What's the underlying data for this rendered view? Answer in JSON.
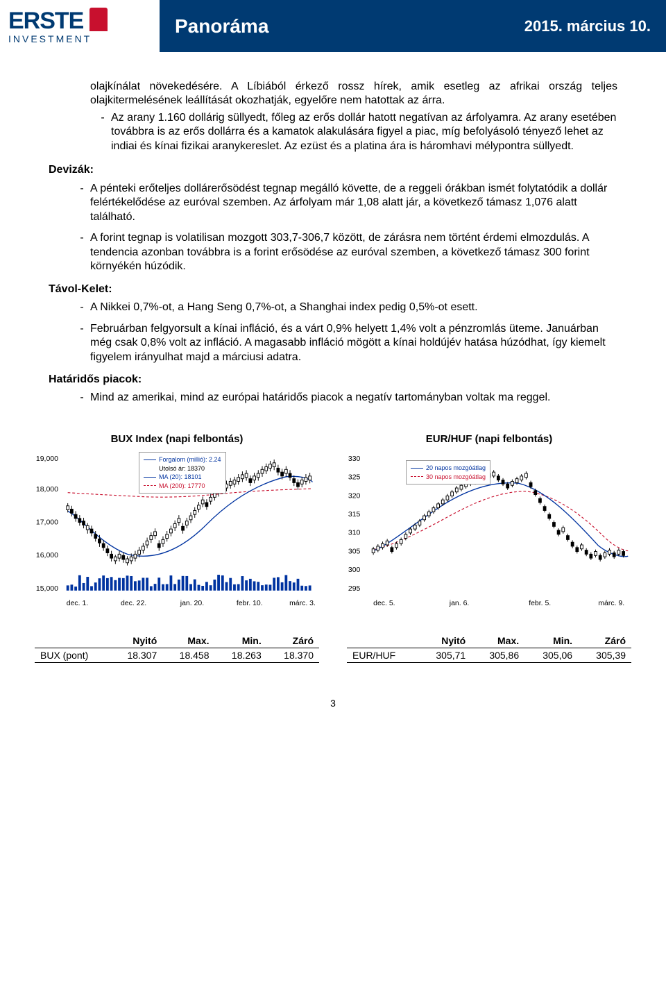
{
  "header": {
    "logo_main": "ERSTE",
    "logo_sub": "INVESTMENT",
    "title": "Panoráma",
    "date": "2015. március 10."
  },
  "body": {
    "intro_paras": [
      "olajkínálat növekedésére. A Líbiából érkező rossz hírek, amik esetleg az afrikai ország teljes olajkitermelésének leállítását okozhatják, egyelőre nem hatottak az árra.",
      "Az arany 1.160 dollárig süllyedt, főleg az erős dollár hatott negatívan az árfolyamra. Az arany esetében továbbra is az erős dollárra és a kamatok alakulására figyel a piac, míg befolyásoló tényező lehet az indiai és kínai fizikai aranykereslet. Az ezüst és a platina ára is háromhavi mélypontra süllyedt."
    ],
    "sections": [
      {
        "title": "Devizák:",
        "items": [
          "A pénteki erőteljes dollárerősödést tegnap megálló követte, de a reggeli órákban ismét folytatódik a dollár felértékelődése az euróval szemben. Az árfolyam már 1,08 alatt jár, a következő támasz 1,076 alatt található.",
          "A forint tegnap is volatilisan mozgott 303,7-306,7 között, de zárásra nem történt érdemi elmozdulás. A tendencia azonban továbbra is a forint erősödése az euróval szemben, a következő támasz 300 forint környékén húzódik."
        ]
      },
      {
        "title": "Távol-Kelet:",
        "items": [
          "A Nikkei 0,7%-ot, a Hang Seng 0,7%-ot, a Shanghai index pedig 0,5%-ot esett.",
          "Februárban felgyorsult a kínai infláció, és a várt 0,9% helyett 1,4% volt a pénzromlás üteme. Januárban még csak 0,8% volt az infláció. A magasabb infláció mögött a kínai holdújév hatása húzódhat, így kiemelt figyelem irányulhat majd a márciusi adatra."
        ]
      },
      {
        "title": "Határidős piacok:",
        "items": [
          "Mind az amerikai, mind az európai határidős piacok a negatív tartományban voltak ma reggel."
        ]
      }
    ]
  },
  "chart_left": {
    "title": "BUX Index (napi felbontás)",
    "y_ticks": [
      "19,000",
      "18,000",
      "17,000",
      "16,000",
      "15,000"
    ],
    "x_ticks": [
      "dec. 1.",
      "dec. 22.",
      "jan. 20.",
      "febr. 10.",
      "márc. 3."
    ],
    "legend": [
      {
        "label": "Forgalom (millió): 2.24",
        "color": "#0033a0",
        "style": "solid"
      },
      {
        "label": "Utolsó ár: 18370",
        "color": "#000000",
        "style": "text"
      },
      {
        "label": "MA (20): 18101",
        "color": "#0033a0",
        "style": "solid"
      },
      {
        "label": "MA (200): 17770",
        "color": "#c8102e",
        "style": "dashed"
      }
    ],
    "ma20_color": "#0033a0",
    "ma200_color": "#c8102e",
    "vol_color": "#0033a0",
    "candle_up": "#ffffff",
    "candle_down": "#000000",
    "table": {
      "headers": [
        "",
        "Nyitó",
        "Max.",
        "Min.",
        "Záró"
      ],
      "row_label": "BUX (pont)",
      "values": [
        "18.307",
        "18.458",
        "18.263",
        "18.370"
      ]
    }
  },
  "chart_right": {
    "title": "EUR/HUF (napi felbontás)",
    "y_ticks": [
      "330",
      "325",
      "320",
      "315",
      "310",
      "305",
      "300",
      "295"
    ],
    "x_ticks": [
      "dec. 5.",
      "jan. 6.",
      "febr. 5.",
      "márc. 9."
    ],
    "legend": [
      {
        "label": "20 napos mozgóátlag",
        "color": "#0033a0",
        "style": "solid"
      },
      {
        "label": "30 napos mozgóátlag",
        "color": "#c8102e",
        "style": "dashed"
      }
    ],
    "ma20_color": "#0033a0",
    "ma30_color": "#c8102e",
    "table": {
      "headers": [
        "",
        "Nyitó",
        "Max.",
        "Min.",
        "Záró"
      ],
      "row_label": "EUR/HUF",
      "values": [
        "305,71",
        "305,86",
        "305,06",
        "305,39"
      ]
    }
  },
  "page_number": "3"
}
